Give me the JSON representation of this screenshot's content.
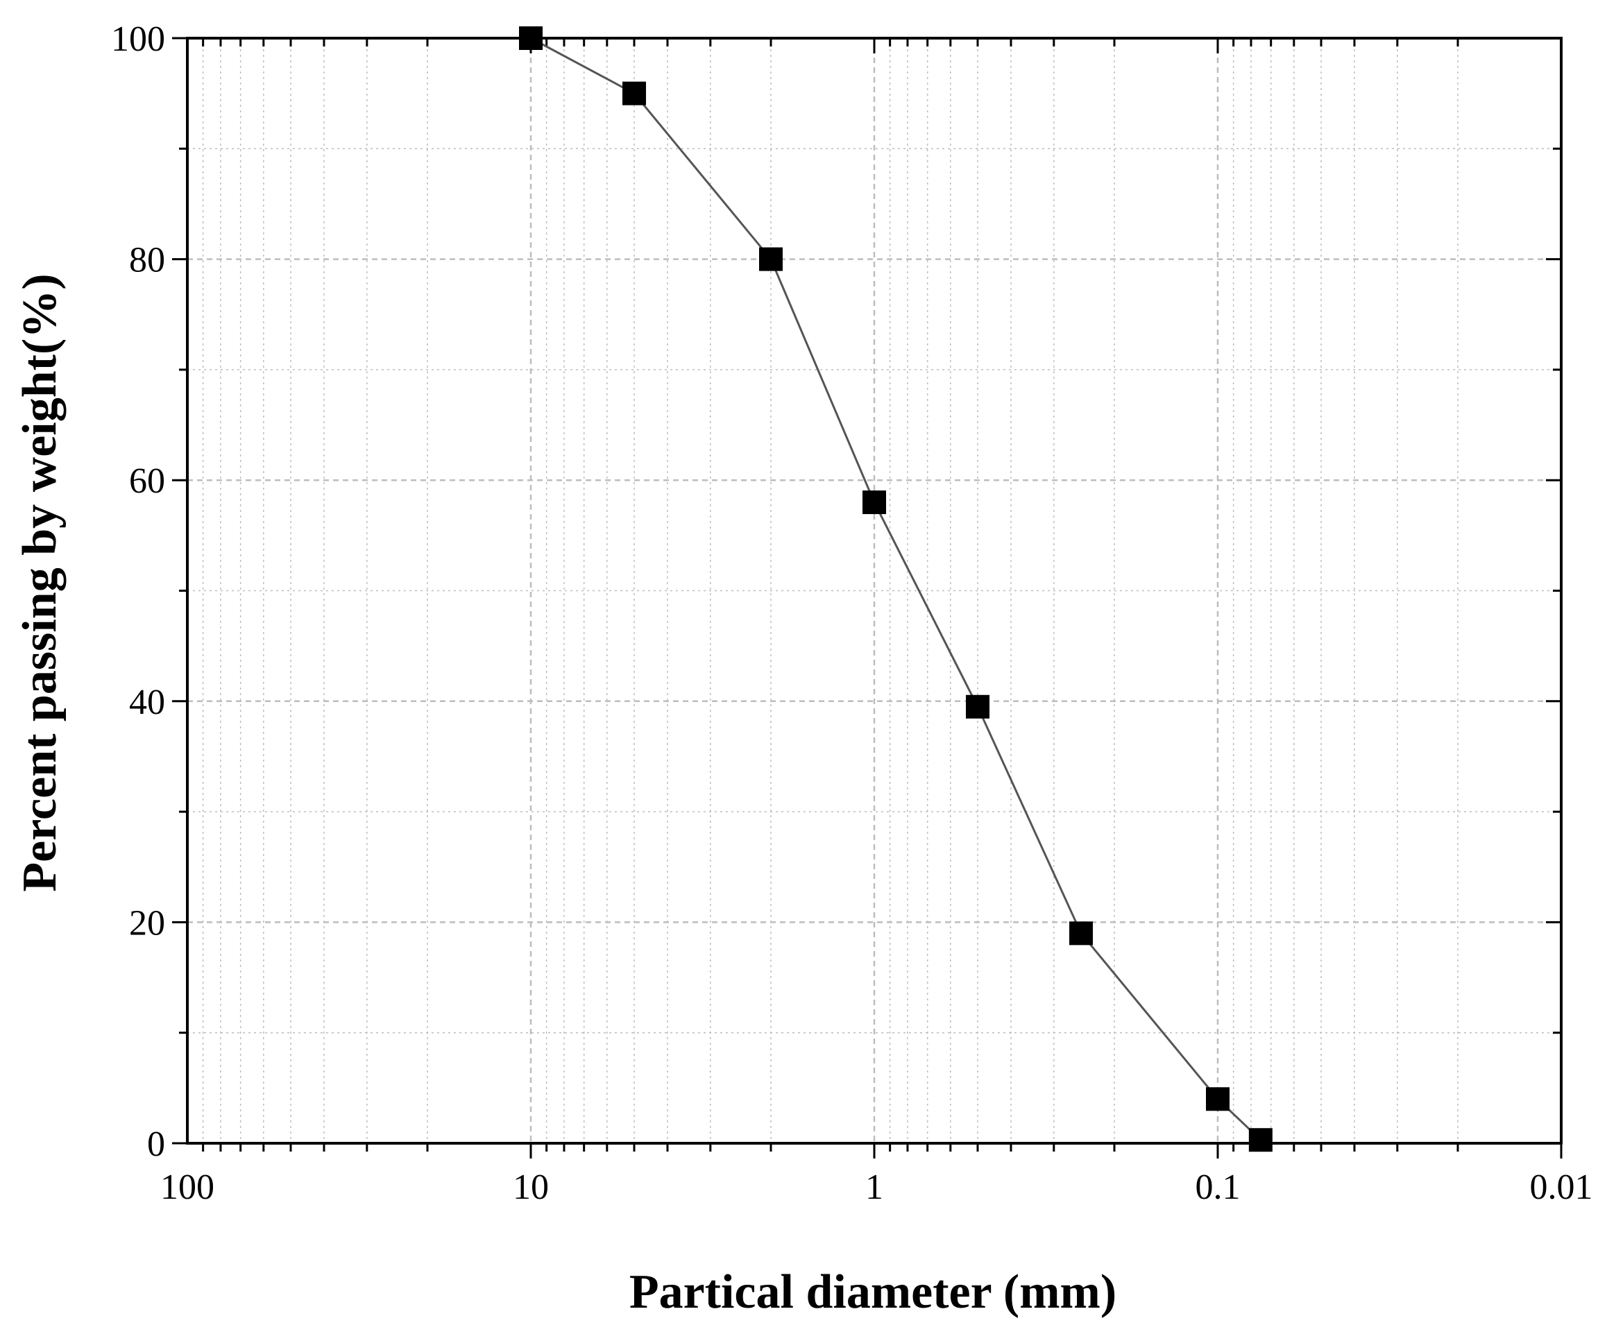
{
  "chart_data": {
    "type": "scatter",
    "title": "",
    "xlabel": "Partical diameter (mm)",
    "ylabel": "Percent passing by weight(%)",
    "x_scale": "log",
    "x_reversed": true,
    "xlim": [
      100,
      0.01
    ],
    "ylim": [
      0,
      100
    ],
    "x_ticks": [
      100,
      10,
      1,
      0.1,
      0.01
    ],
    "x_tick_labels": [
      "100",
      "10",
      "1",
      "0.1",
      "0.01"
    ],
    "y_ticks": [
      0,
      20,
      40,
      60,
      80,
      100
    ],
    "y_tick_labels": [
      "0",
      "20",
      "40",
      "60",
      "80",
      "100"
    ],
    "grid": true,
    "marker": "square",
    "line": true,
    "series": [
      {
        "x": [
          10,
          5,
          2,
          1,
          0.5,
          0.25,
          0.1,
          0.075
        ],
        "y": [
          100,
          95,
          80,
          58,
          39.5,
          19,
          4,
          0.3
        ]
      }
    ],
    "colors": {
      "marker": "#000000",
      "line": "#555555",
      "grid": "#bdbdbd",
      "axis": "#000000"
    }
  }
}
